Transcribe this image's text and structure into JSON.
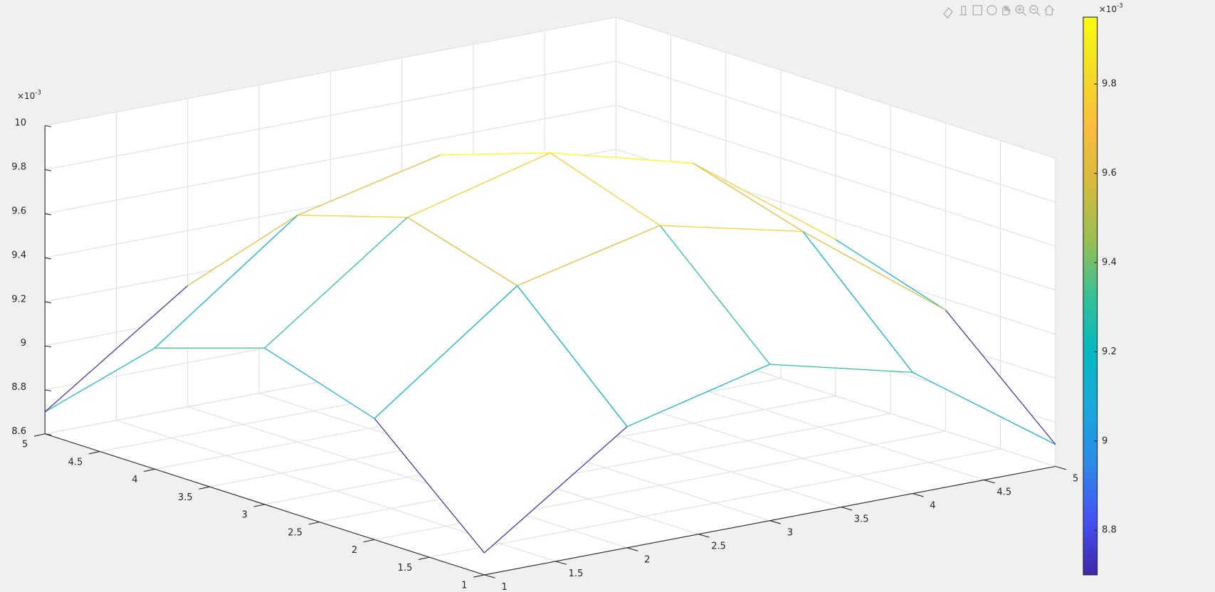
{
  "chart_data": {
    "type": "mesh",
    "x": [
      1,
      2,
      3,
      4,
      5
    ],
    "y": [
      1,
      2,
      3,
      4,
      5
    ],
    "z": [
      [
        8.7,
        9.15,
        9.31,
        9.15,
        8.7
      ],
      [
        9.15,
        9.63,
        9.78,
        9.63,
        9.15
      ],
      [
        9.31,
        9.78,
        9.95,
        9.78,
        9.31
      ],
      [
        9.15,
        9.63,
        9.78,
        9.63,
        9.15
      ],
      [
        8.7,
        9.15,
        9.31,
        9.15,
        8.7
      ]
    ],
    "xlim": [
      1,
      5
    ],
    "ylim": [
      1,
      5
    ],
    "zlim": [
      8.6,
      10
    ],
    "xticks": [
      1,
      1.5,
      2,
      2.5,
      3,
      3.5,
      4,
      4.5,
      5
    ],
    "yticks": [
      1,
      1.5,
      2,
      2.5,
      3,
      3.5,
      4,
      4.5,
      5
    ],
    "zticks": [
      8.6,
      8.8,
      9,
      9.2,
      9.4,
      9.6,
      9.8,
      10
    ],
    "z_multiplier": {
      "base": "×10",
      "exponent": "-3"
    },
    "grid": true,
    "colormap": [
      "#3e26a8",
      "#4552f5",
      "#2c8ae8",
      "#18a8dc",
      "#04b8c0",
      "#35c196",
      "#99bf52",
      "#d4bb3c",
      "#fcbc3b",
      "#f2dc26",
      "#f9fb0e"
    ],
    "colorbar": {
      "lim": [
        8.7,
        9.95
      ],
      "ticks": [
        8.8,
        9,
        9.2,
        9.4,
        9.6,
        9.8
      ],
      "multiplier": {
        "base": "×10",
        "exponent": "-3"
      }
    }
  }
}
